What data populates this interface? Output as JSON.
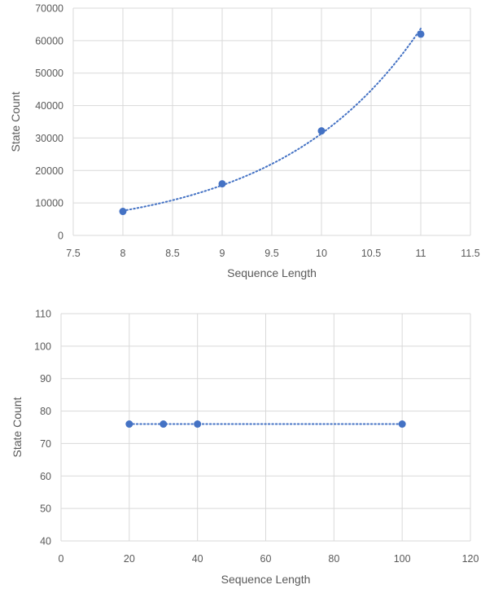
{
  "chart_data": [
    {
      "type": "scatter",
      "xlabel": "Sequence Length",
      "ylabel": "State Count",
      "xlim": [
        7.5,
        11.5
      ],
      "ylim": [
        0,
        70000
      ],
      "x_ticks": [
        "7.5",
        "8",
        "8.5",
        "9",
        "9.5",
        "10",
        "10.5",
        "11",
        "11.5"
      ],
      "y_ticks": [
        "0",
        "10000",
        "20000",
        "30000",
        "40000",
        "50000",
        "60000",
        "70000"
      ],
      "grid": true,
      "trendline": "exponential",
      "series": [
        {
          "x": [
            8,
            9,
            10,
            11
          ],
          "y": [
            7400,
            15900,
            32200,
            62000
          ]
        }
      ],
      "color": "#4472c4"
    },
    {
      "type": "scatter",
      "xlabel": "Sequence Length",
      "ylabel": "State Count",
      "xlim": [
        0,
        120
      ],
      "ylim": [
        40,
        110
      ],
      "x_ticks": [
        "0",
        "20",
        "40",
        "60",
        "80",
        "100",
        "120"
      ],
      "y_ticks": [
        "40",
        "50",
        "60",
        "70",
        "80",
        "90",
        "100",
        "110"
      ],
      "grid": true,
      "trendline": "linear",
      "series": [
        {
          "x": [
            20,
            30,
            40,
            100
          ],
          "y": [
            76,
            76,
            76,
            76
          ]
        }
      ],
      "color": "#4472c4"
    }
  ]
}
